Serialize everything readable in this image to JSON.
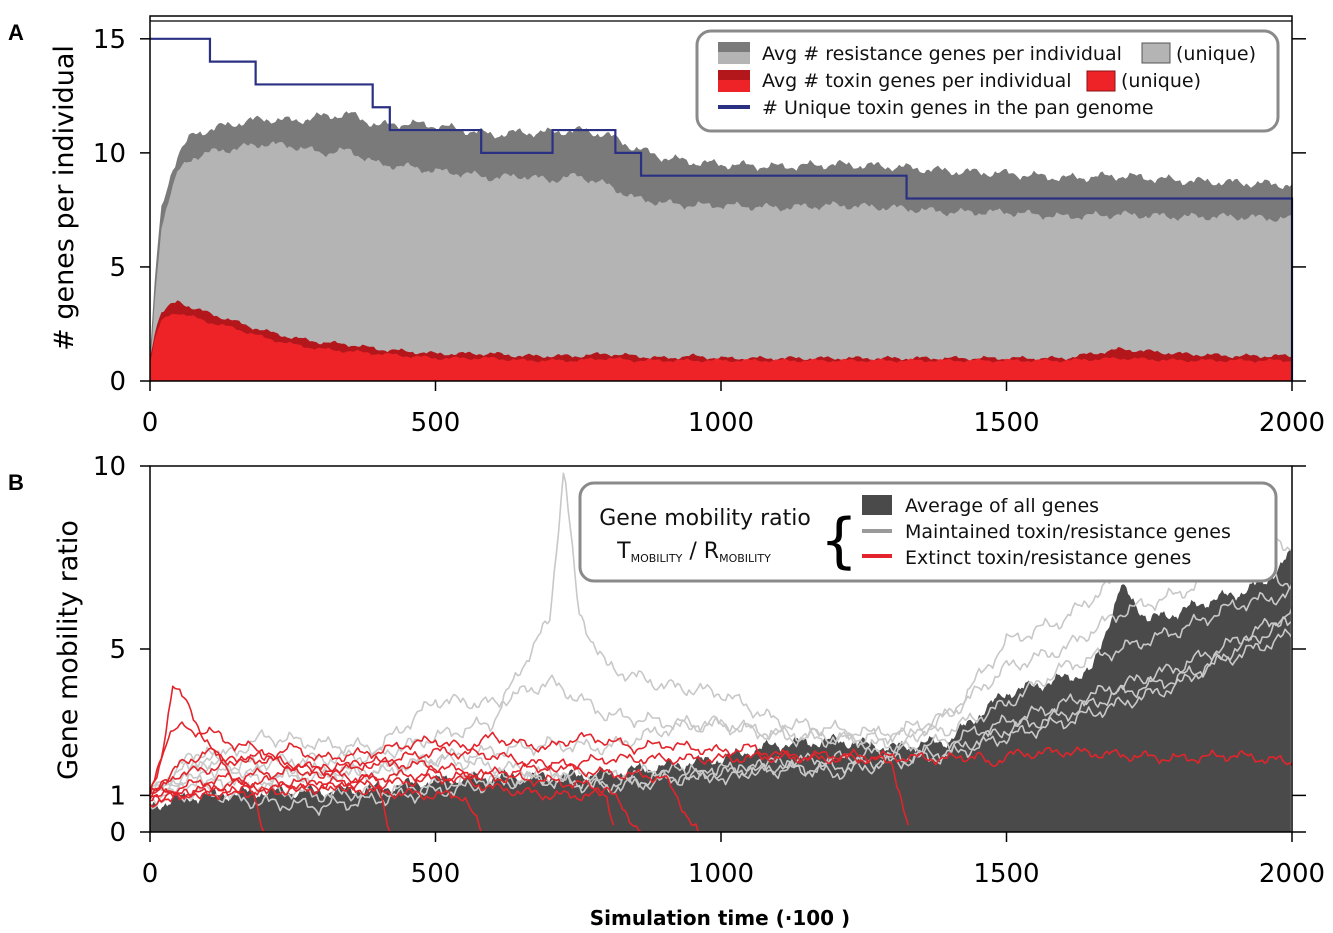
{
  "colors": {
    "resistance_total": "#7a7a7a",
    "resistance_unique": "#b4b4b4",
    "toxin_total": "#b3171c",
    "toxin_unique": "#ee2328",
    "pan_genome": "#2b3182",
    "average_fill": "#4a4a4a",
    "maintained": "#c8c8c8",
    "extinct": "#e3242b"
  },
  "chart_data": [
    {
      "panel": "A",
      "type": "area",
      "ylabel": "# genes per individual",
      "xlim": [
        0,
        2000
      ],
      "ylim": [
        0,
        16
      ],
      "xticks": [
        "0",
        "500",
        "1000",
        "1500",
        "2000"
      ],
      "yticks": [
        "0",
        "5",
        "10",
        "15"
      ],
      "legend_position": "top-right",
      "legend": {
        "resistance": "Avg # resistance genes per individual",
        "resistance_unique": "(unique)",
        "toxin": "Avg # toxin genes per individual",
        "toxin_unique": "(unique)",
        "pan": "# Unique toxin genes in the pan genome"
      },
      "series": [
        {
          "name": "Avg # resistance genes per individual",
          "x": [
            0,
            10,
            20,
            35,
            50,
            75,
            100,
            150,
            200,
            250,
            300,
            350,
            400,
            450,
            500,
            550,
            600,
            650,
            700,
            750,
            800,
            850,
            900,
            950,
            1000,
            1100,
            1200,
            1300,
            1400,
            1500,
            1600,
            1700,
            1800,
            1900,
            2000
          ],
          "values": [
            1.0,
            5.0,
            7.5,
            9.0,
            10.0,
            10.8,
            11.0,
            11.3,
            11.5,
            11.4,
            11.6,
            11.7,
            11.2,
            11.3,
            11.2,
            11.0,
            10.8,
            10.9,
            10.9,
            11.0,
            10.8,
            10.2,
            9.8,
            9.6,
            9.5,
            9.4,
            9.5,
            9.4,
            9.2,
            9.1,
            8.9,
            9.0,
            8.8,
            8.7,
            8.6
          ]
        },
        {
          "name": "(unique)",
          "x": [
            0,
            10,
            20,
            35,
            50,
            75,
            100,
            150,
            200,
            250,
            300,
            350,
            400,
            450,
            500,
            550,
            600,
            650,
            700,
            750,
            800,
            850,
            900,
            950,
            1000,
            1100,
            1200,
            1300,
            1400,
            1500,
            1600,
            1700,
            1800,
            1900,
            2000
          ],
          "values": [
            0.5,
            4.0,
            6.8,
            8.2,
            9.2,
            9.8,
            10.0,
            10.2,
            10.4,
            10.3,
            10.0,
            10.1,
            9.5,
            9.4,
            9.2,
            9.1,
            8.9,
            9.0,
            8.8,
            9.0,
            8.6,
            8.0,
            7.8,
            7.7,
            7.7,
            7.6,
            7.7,
            7.6,
            7.4,
            7.4,
            7.2,
            7.3,
            7.2,
            7.2,
            7.1
          ]
        },
        {
          "name": "Avg # toxin genes per individual",
          "x": [
            0,
            10,
            20,
            35,
            50,
            75,
            100,
            150,
            200,
            250,
            300,
            350,
            400,
            450,
            500,
            550,
            600,
            650,
            700,
            750,
            800,
            850,
            900,
            950,
            1000,
            1100,
            1200,
            1300,
            1400,
            1500,
            1600,
            1700,
            1800,
            1900,
            2000
          ],
          "values": [
            1.0,
            2.4,
            3.0,
            3.3,
            3.5,
            3.2,
            3.0,
            2.6,
            2.2,
            1.9,
            1.7,
            1.6,
            1.4,
            1.3,
            1.2,
            1.2,
            1.2,
            1.1,
            1.1,
            1.1,
            1.2,
            1.1,
            1.0,
            1.1,
            1.0,
            1.0,
            1.0,
            1.0,
            1.0,
            1.0,
            1.0,
            1.4,
            1.2,
            1.1,
            1.1
          ]
        },
        {
          "name": "(unique)",
          "x": [
            0,
            10,
            20,
            35,
            50,
            75,
            100,
            150,
            200,
            250,
            300,
            350,
            400,
            450,
            500,
            550,
            600,
            650,
            700,
            750,
            800,
            850,
            900,
            950,
            1000,
            1100,
            1200,
            1300,
            1400,
            1500,
            1600,
            1700,
            1800,
            1900,
            2000
          ],
          "values": [
            0.8,
            2.0,
            2.6,
            2.9,
            3.0,
            2.8,
            2.6,
            2.3,
            1.9,
            1.6,
            1.4,
            1.3,
            1.2,
            1.1,
            1.0,
            1.0,
            1.0,
            0.9,
            0.9,
            0.9,
            1.0,
            0.9,
            0.9,
            0.9,
            0.9,
            0.9,
            0.9,
            0.9,
            0.9,
            0.9,
            0.9,
            1.0,
            0.9,
            0.9,
            0.9
          ]
        },
        {
          "name": "# Unique toxin genes in the pan genome",
          "steps": [
            [
              0,
              15
            ],
            [
              105,
              14
            ],
            [
              185,
              13
            ],
            [
              390,
              12
            ],
            [
              420,
              11
            ],
            [
              580,
              10
            ],
            [
              705,
              11
            ],
            [
              815,
              10
            ],
            [
              860,
              9
            ],
            [
              1325,
              8
            ],
            [
              2000,
              8
            ],
            [
              2000,
              0
            ]
          ]
        }
      ]
    },
    {
      "panel": "B",
      "type": "line",
      "ylabel": "Gene mobility ratio",
      "xlabel": "Simulation time (·100   )",
      "xlim": [
        0,
        2000
      ],
      "ylim": [
        0,
        10
      ],
      "xticks": [
        "0",
        "500",
        "1000",
        "1500",
        "2000"
      ],
      "yticks": [
        "0",
        "1",
        "5",
        "10"
      ],
      "legend_position": "top-right",
      "legend": {
        "title": "Gene mobility ratio",
        "formula_t": "T",
        "formula_t_sub": "MOBILITY",
        "formula_sep": " / ",
        "formula_r": "R",
        "formula_r_sub": "MOBILITY",
        "brace": "{",
        "average": "Average of all genes",
        "maintained": "Maintained toxin/resistance genes",
        "extinct": "Extinct toxin/resistance genes"
      },
      "average": {
        "x": [
          0,
          50,
          100,
          200,
          300,
          400,
          500,
          600,
          700,
          800,
          900,
          1000,
          1100,
          1200,
          1300,
          1400,
          1450,
          1500,
          1550,
          1600,
          1650,
          1700,
          1750,
          1800,
          1850,
          1900,
          1950,
          2000
        ],
        "values": [
          0.7,
          0.9,
          1.0,
          1.1,
          1.1,
          1.2,
          1.4,
          1.5,
          1.5,
          1.6,
          1.8,
          2.0,
          2.4,
          2.5,
          2.3,
          2.5,
          3.2,
          3.8,
          4.0,
          4.2,
          4.4,
          6.7,
          5.8,
          6.0,
          6.3,
          6.5,
          6.8,
          7.6
        ]
      },
      "maintained": [
        {
          "x": [
            0,
            50,
            100,
            150,
            200,
            300,
            400,
            500,
            600,
            700,
            800,
            900,
            1000,
            1100,
            1200,
            1300,
            1400,
            1500,
            1600,
            1700,
            1800,
            1900,
            2000
          ],
          "values": [
            1.0,
            1.8,
            2.3,
            1.5,
            1.4,
            1.7,
            1.6,
            2.0,
            1.8,
            1.6,
            1.5,
            1.7,
            1.5,
            1.9,
            2.0,
            2.2,
            2.5,
            3.0,
            3.5,
            4.0,
            4.5,
            5.2,
            6.0
          ]
        },
        {
          "x": [
            0,
            50,
            100,
            150,
            200,
            300,
            400,
            500,
            600,
            700,
            800,
            900,
            1000,
            1100,
            1200,
            1300,
            1400,
            1500,
            1600,
            1700,
            1800,
            1900,
            2000
          ],
          "values": [
            0.9,
            1.2,
            1.6,
            1.3,
            1.2,
            1.0,
            1.1,
            1.3,
            1.5,
            1.4,
            1.2,
            1.4,
            1.6,
            1.7,
            1.8,
            2.0,
            2.2,
            2.8,
            3.2,
            3.8,
            4.2,
            4.8,
            5.4
          ]
        },
        {
          "x": [
            0,
            50,
            100,
            150,
            200,
            300,
            400,
            500,
            600,
            700,
            800,
            900,
            1000,
            1100,
            1200,
            1300,
            1400,
            1500,
            1600,
            1700,
            1800,
            1900,
            2000
          ],
          "values": [
            1.0,
            1.5,
            1.9,
            2.2,
            2.6,
            2.4,
            2.3,
            3.6,
            3.5,
            4.1,
            3.2,
            3.0,
            2.9,
            2.7,
            2.6,
            2.3,
            3.2,
            5.2,
            5.8,
            7.0,
            8.0,
            8.3,
            7.8
          ]
        },
        {
          "x": [
            0,
            50,
            100,
            150,
            200,
            300,
            400,
            500,
            600,
            650,
            700,
            725,
            750,
            800,
            900,
            1000,
            1100,
            1200,
            1300,
            1400,
            1500,
            1600,
            1700,
            1800,
            1900,
            2000
          ],
          "values": [
            1.1,
            1.6,
            2.0,
            1.8,
            1.9,
            2.0,
            2.1,
            2.6,
            3.0,
            4.5,
            5.8,
            10.0,
            6.0,
            4.5,
            4.0,
            3.8,
            3.0,
            2.8,
            2.6,
            2.8,
            3.5,
            4.5,
            5.0,
            5.5,
            6.2,
            6.5
          ]
        },
        {
          "x": [
            0,
            50,
            100,
            150,
            200,
            300,
            400,
            500,
            600,
            700,
            800,
            900,
            1000,
            1100,
            1200,
            1300,
            1400,
            1500,
            1600,
            1700,
            1800,
            1900,
            2000
          ],
          "values": [
            0.8,
            1.0,
            1.1,
            0.9,
            0.8,
            0.7,
            0.9,
            1.1,
            1.3,
            1.5,
            1.3,
            1.5,
            1.7,
            1.8,
            1.6,
            1.9,
            2.1,
            2.6,
            3.0,
            3.5,
            4.0,
            5.0,
            5.8
          ]
        },
        {
          "x": [
            0,
            50,
            100,
            150,
            200,
            300,
            400,
            500,
            600,
            700,
            800,
            900,
            1000,
            1100,
            1200,
            1300,
            1400,
            1500,
            1600,
            1700,
            1800,
            1900,
            2000
          ],
          "values": [
            1.0,
            1.3,
            1.5,
            1.7,
            1.6,
            1.5,
            1.7,
            2.0,
            2.2,
            2.4,
            2.3,
            2.8,
            3.0,
            2.6,
            2.5,
            2.7,
            3.2,
            4.5,
            5.0,
            6.0,
            6.5,
            7.3,
            6.8
          ]
        }
      ],
      "extinct": [
        {
          "x": [
            0,
            20,
            40,
            60,
            80,
            100,
            120,
            140,
            160,
            180,
            200
          ],
          "values": [
            1.0,
            2.0,
            4.1,
            3.6,
            3.0,
            2.5,
            2.0,
            1.6,
            1.4,
            1.0,
            0
          ]
        },
        {
          "x": [
            0,
            30,
            60,
            90,
            120,
            150,
            180,
            200,
            250,
            300,
            350,
            400,
            420
          ],
          "values": [
            1.1,
            2.5,
            3.0,
            2.6,
            2.8,
            2.2,
            2.5,
            2.0,
            1.8,
            1.6,
            1.5,
            1.4,
            0
          ]
        },
        {
          "x": [
            0,
            50,
            100,
            150,
            200,
            250,
            300,
            350,
            400,
            450,
            500,
            550,
            600,
            650,
            700,
            750,
            800,
            850,
            900,
            950,
            1000,
            1050,
            1100,
            1150,
            1200,
            1250,
            1300,
            1330
          ],
          "values": [
            1.0,
            1.6,
            1.7,
            2.0,
            2.1,
            2.3,
            2.0,
            2.1,
            2.2,
            2.4,
            2.5,
            2.3,
            2.6,
            2.4,
            2.3,
            2.6,
            2.5,
            2.3,
            2.4,
            2.3,
            2.2,
            2.3,
            2.1,
            2.0,
            2.0,
            2.0,
            1.9,
            0
          ]
        },
        {
          "x": [
            0,
            100,
            200,
            300,
            400,
            500,
            550,
            580
          ],
          "values": [
            0.9,
            1.1,
            1.2,
            1.3,
            1.1,
            1.0,
            1.0,
            0
          ]
        },
        {
          "x": [
            0,
            100,
            200,
            300,
            400,
            500,
            600,
            700,
            705,
            800,
            815
          ],
          "values": [
            0.8,
            1.2,
            1.4,
            1.3,
            1.5,
            1.6,
            1.2,
            1.0,
            1.0,
            1.0,
            0
          ]
        },
        {
          "x": [
            0,
            100,
            200,
            300,
            400,
            500,
            600,
            700,
            800,
            860
          ],
          "values": [
            1.0,
            1.4,
            1.6,
            1.7,
            1.9,
            1.8,
            1.5,
            1.4,
            1.2,
            0
          ]
        },
        {
          "x": [
            0,
            50,
            100,
            150,
            200,
            300,
            400,
            500,
            600,
            700,
            800,
            900,
            960
          ],
          "values": [
            1.0,
            1.8,
            2.2,
            1.9,
            2.0,
            1.7,
            1.9,
            2.2,
            2.1,
            1.8,
            1.6,
            1.5,
            0
          ]
        },
        {
          "x": [
            0,
            200,
            400,
            600,
            800,
            1000,
            1200,
            1400,
            1450,
            1470,
            1500,
            1600,
            1700,
            1800,
            1900,
            2000
          ],
          "values": [
            1.0,
            1.1,
            1.3,
            1.6,
            2.0,
            2.0,
            2.1,
            2.0,
            2.1,
            1.8,
            2.1,
            2.2,
            2.1,
            2.0,
            2.1,
            1.9
          ]
        }
      ]
    }
  ]
}
